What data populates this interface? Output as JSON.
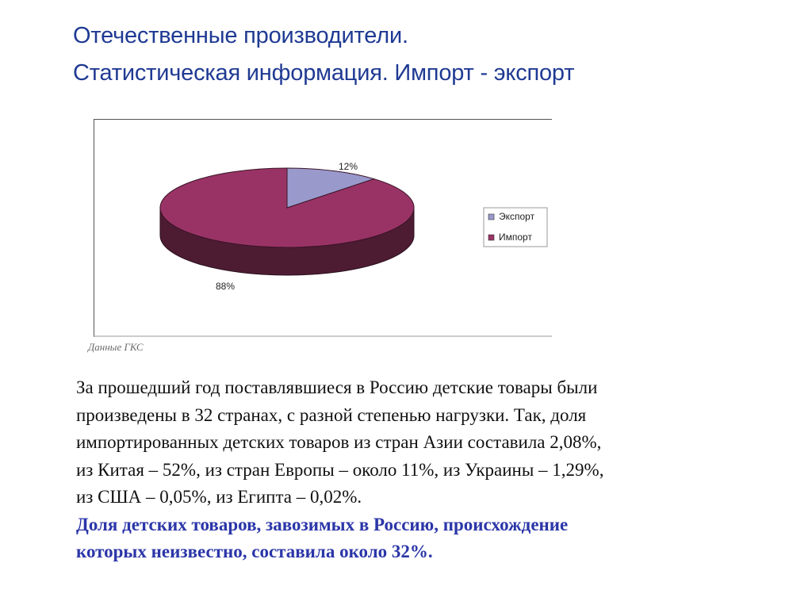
{
  "slide": {
    "title_line1": "Отечественные производители.",
    "title_line2": "Статистическая информация. Импорт - экспорт"
  },
  "chart_data": {
    "type": "pie",
    "title": "",
    "slices": [
      {
        "label": "Экспорт",
        "value": 12,
        "value_label": "12%",
        "color": "#9999cc"
      },
      {
        "label": "Импорт",
        "value": 88,
        "value_label": "88%",
        "color": "#993366"
      }
    ],
    "three_d": true,
    "legend_position": "right"
  },
  "source_note": "Данные ГКС",
  "paragraph": {
    "line1": "За прошедший год поставлявшиеся в Россию детские товары были",
    "line2": "произведены в 32 странах, с разной степенью нагрузки. Так, доля",
    "line3": "импортированных детских товаров из стран Азии составила 2,08%,",
    "line4": "из Китая – 52%, из стран Европы – около 11%, из Украины – 1,29%,",
    "line5": "из США – 0,05%, из Египта – 0,02%.",
    "highlight_line1": "Доля детских товаров, завозимых в Россию, происхождение",
    "highlight_line2": "которых неизвестно, составила около 32%."
  },
  "colors": {
    "title": "#1f3a93",
    "highlight": "#2b36a8",
    "export_slice": "#9999cc",
    "import_slice": "#993366",
    "import_side": "#4d1c33"
  }
}
